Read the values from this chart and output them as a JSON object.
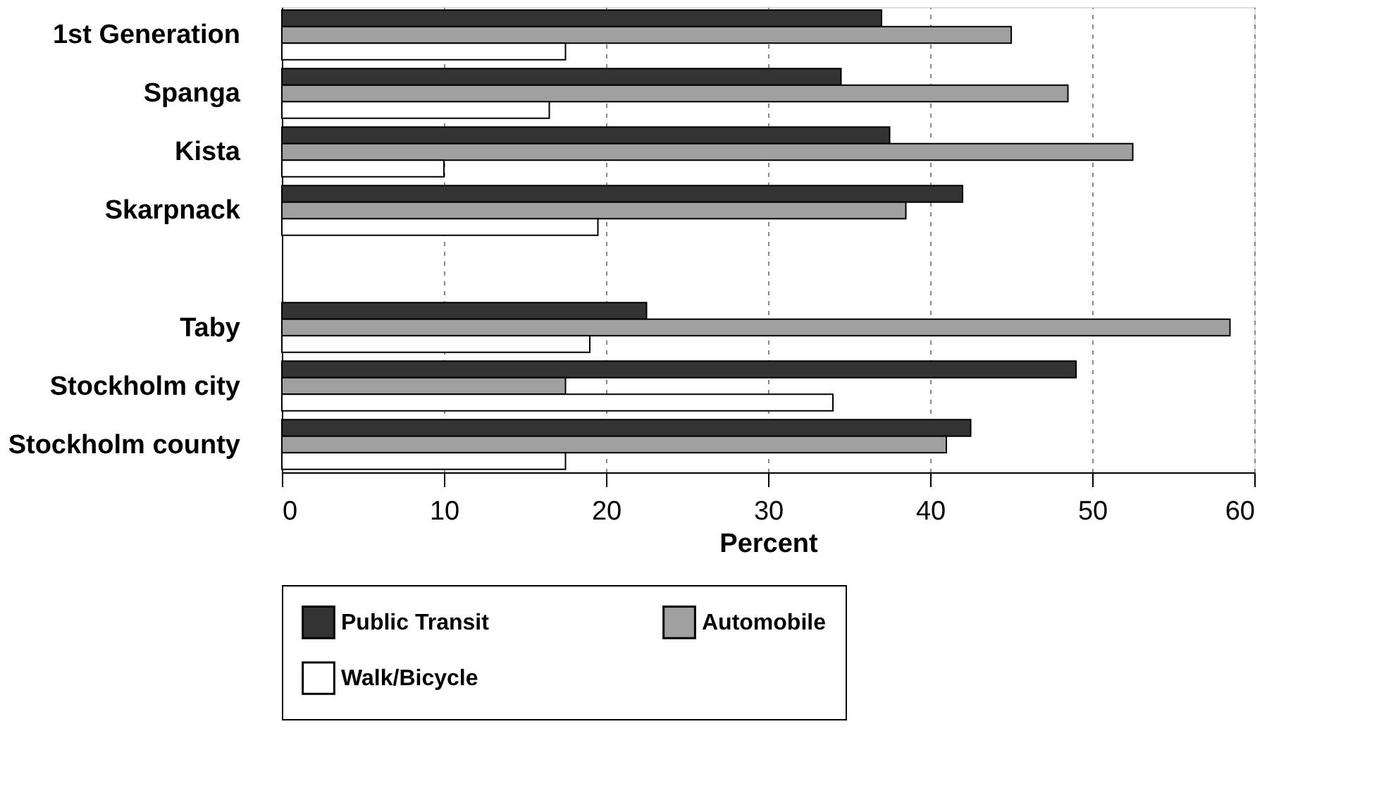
{
  "chart_data": {
    "type": "bar",
    "orientation": "horizontal",
    "xlabel": "Percent",
    "categories": [
      "1st Generation",
      "Spanga",
      "Kista",
      "Skarpnack",
      null,
      "Taby",
      "Stockholm city",
      "Stockholm county"
    ],
    "series": [
      {
        "name": "Public Transit",
        "color": "#333333",
        "values": [
          37,
          34.5,
          37.5,
          42,
          null,
          22.5,
          49,
          42.5
        ]
      },
      {
        "name": "Automobile",
        "color": "#a0a0a0",
        "values": [
          45,
          48.5,
          52.5,
          38.5,
          null,
          58.5,
          17.5,
          41
        ]
      },
      {
        "name": "Walk/Bicycle",
        "color": "#ffffff",
        "values": [
          17.5,
          16.5,
          10,
          19.5,
          null,
          19,
          34,
          17.5
        ]
      }
    ],
    "xlim": [
      0,
      60
    ],
    "xticks": [
      0,
      10,
      20,
      30,
      40,
      50,
      60
    ],
    "grid": "x",
    "legend": "bottom"
  }
}
